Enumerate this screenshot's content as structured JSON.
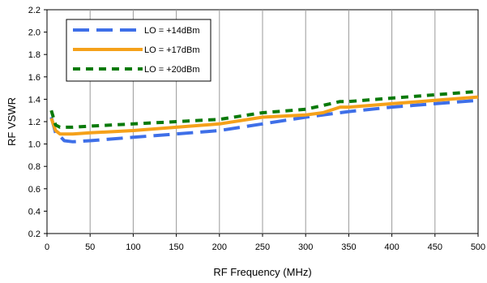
{
  "chart_data": {
    "type": "line",
    "title": "",
    "xlabel": "RF Frequency (MHz)",
    "ylabel": "RF VSWR",
    "xlim": [
      0,
      500
    ],
    "ylim": [
      0.2,
      2.2
    ],
    "x_ticks": [
      "0",
      "50",
      "100",
      "150",
      "200",
      "250",
      "300",
      "350",
      "400",
      "450",
      "500"
    ],
    "y_ticks": [
      "0.2",
      "0.4",
      "0.6",
      "0.8",
      "1.0",
      "1.2",
      "1.4",
      "1.6",
      "1.8",
      "2.0",
      "2.2"
    ],
    "grid": "vertical",
    "legend_position": "top-left",
    "series": [
      {
        "name": "LO = +14dBm",
        "color": "#3e6fe8",
        "style": "long-dash",
        "x": [
          5,
          10,
          15,
          20,
          30,
          50,
          100,
          150,
          200,
          250,
          300,
          350,
          400,
          450,
          500
        ],
        "y": [
          1.24,
          1.1,
          1.07,
          1.03,
          1.02,
          1.03,
          1.06,
          1.09,
          1.12,
          1.18,
          1.24,
          1.29,
          1.33,
          1.36,
          1.39
        ]
      },
      {
        "name": "LO = +17dBm",
        "color": "#f5a11a",
        "style": "solid",
        "x": [
          5,
          10,
          15,
          20,
          30,
          50,
          100,
          150,
          200,
          250,
          300,
          320,
          340,
          350,
          400,
          450,
          500
        ],
        "y": [
          1.23,
          1.12,
          1.09,
          1.09,
          1.09,
          1.1,
          1.12,
          1.15,
          1.18,
          1.24,
          1.26,
          1.28,
          1.33,
          1.33,
          1.36,
          1.39,
          1.42
        ]
      },
      {
        "name": "LO = +20dBm",
        "color": "#0a7a0a",
        "style": "dash",
        "x": [
          5,
          10,
          15,
          20,
          30,
          50,
          100,
          150,
          200,
          250,
          300,
          340,
          350,
          400,
          450,
          500
        ],
        "y": [
          1.3,
          1.17,
          1.15,
          1.15,
          1.15,
          1.16,
          1.18,
          1.2,
          1.22,
          1.28,
          1.31,
          1.38,
          1.38,
          1.41,
          1.44,
          1.47
        ]
      }
    ]
  }
}
